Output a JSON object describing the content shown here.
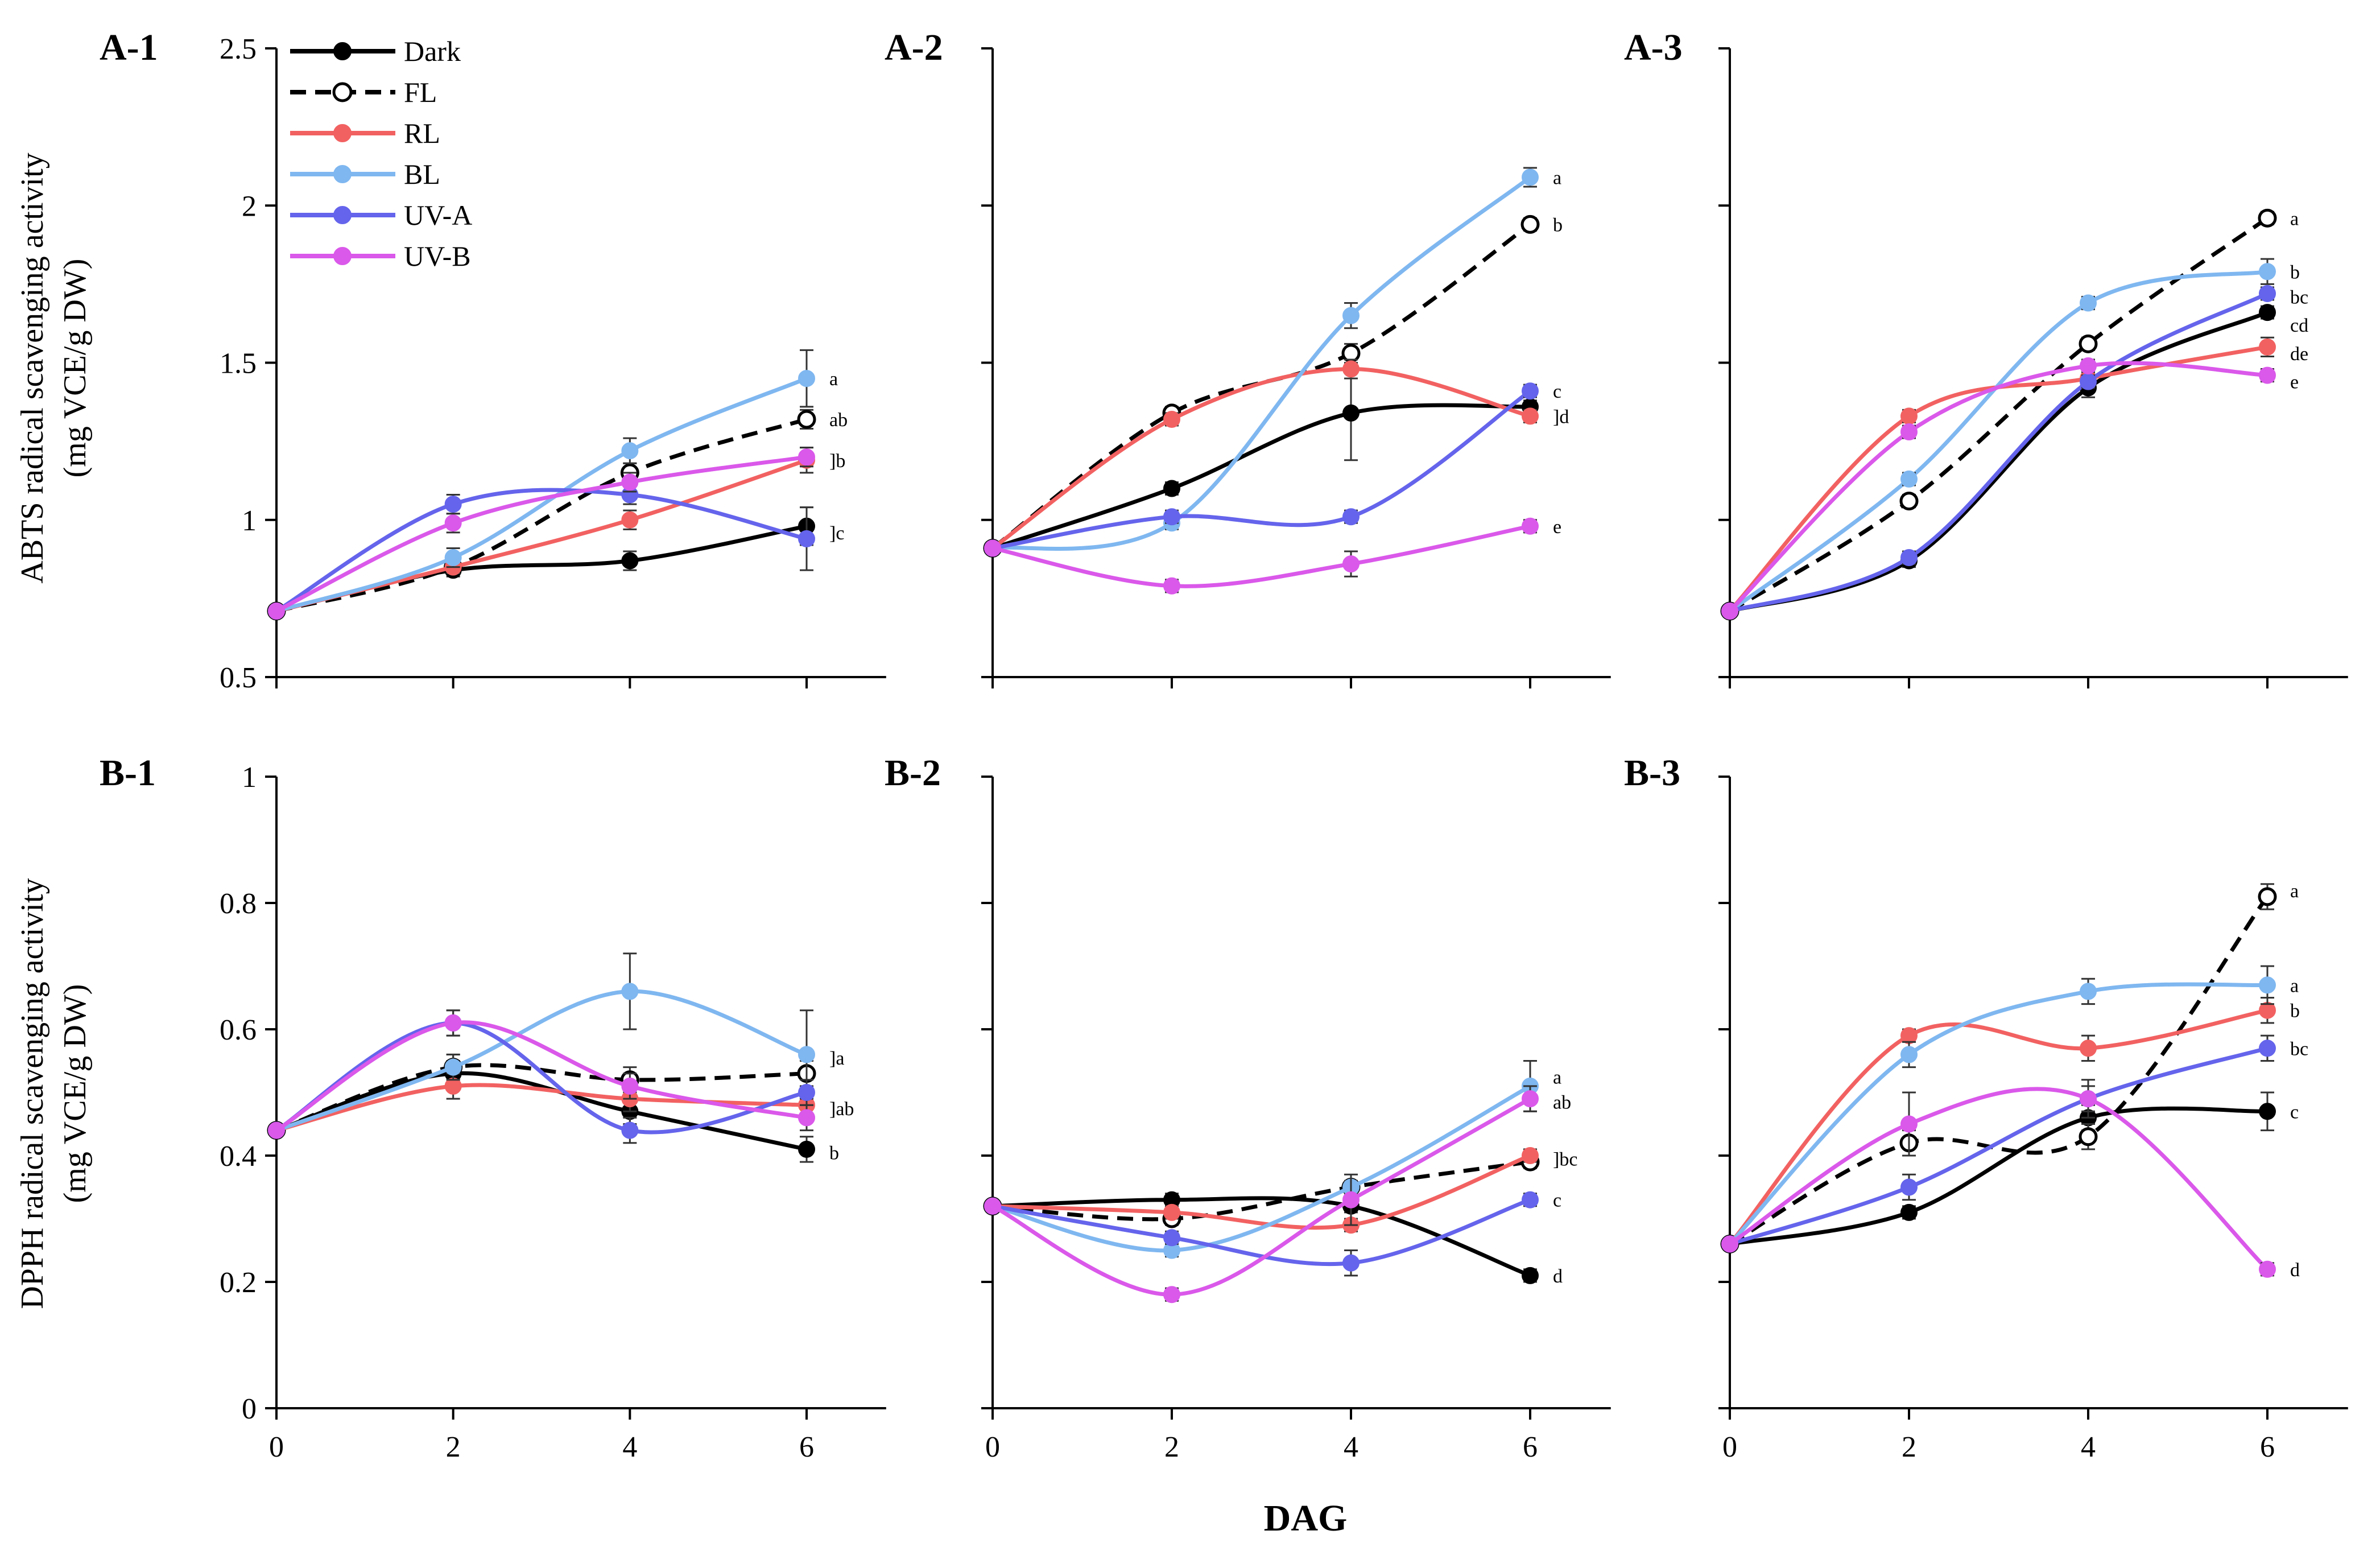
{
  "figure": {
    "xlabel": "DAG",
    "ylabel_top": [
      "ABTS radical scavenging activity",
      "(mg VCE/g DW)"
    ],
    "ylabel_bottom": [
      "DPPH radical scavenging activity",
      "(mg VCE/g DW)"
    ]
  },
  "legend": [
    {
      "name": "Dark",
      "color": "#000000",
      "dash": false,
      "marker": "filled"
    },
    {
      "name": "FL",
      "color": "#000000",
      "dash": true,
      "marker": "open"
    },
    {
      "name": "RL",
      "color": "#f26161",
      "dash": false,
      "marker": "filled"
    },
    {
      "name": "BL",
      "color": "#7fb7f0",
      "dash": false,
      "marker": "filled"
    },
    {
      "name": "UV-A",
      "color": "#6464ec",
      "dash": false,
      "marker": "filled"
    },
    {
      "name": "UV-B",
      "color": "#da58ea",
      "dash": false,
      "marker": "filled"
    }
  ],
  "chart_data": [
    {
      "id": "A-1",
      "type": "line",
      "title": "A-1",
      "x": [
        0,
        2,
        4,
        6
      ],
      "xticks": [
        "0",
        "2",
        "4",
        "6"
      ],
      "xlim": [
        0,
        6.9
      ],
      "ylim": [
        0.5,
        2.5
      ],
      "yticks": [
        "0.5",
        "1",
        "1.5",
        "2",
        "2.5"
      ],
      "series": [
        {
          "name": "Dark",
          "values": [
            0.71,
            0.84,
            0.87,
            0.98
          ],
          "err": [
            0,
            0.02,
            0.03,
            0.06
          ]
        },
        {
          "name": "FL",
          "values": [
            0.71,
            0.85,
            1.15,
            1.32
          ],
          "err": [
            0,
            0.02,
            0.03,
            0.03
          ]
        },
        {
          "name": "RL",
          "values": [
            0.71,
            0.85,
            1.0,
            1.19
          ],
          "err": [
            0,
            0.02,
            0.03,
            0.04
          ]
        },
        {
          "name": "BL",
          "values": [
            0.71,
            0.88,
            1.22,
            1.45
          ],
          "err": [
            0,
            0.03,
            0.04,
            0.09
          ]
        },
        {
          "name": "UV-A",
          "values": [
            0.71,
            1.05,
            1.08,
            0.94
          ],
          "err": [
            0,
            0.03,
            0.03,
            0.1
          ]
        },
        {
          "name": "UV-B",
          "values": [
            0.71,
            0.99,
            1.12,
            1.2
          ],
          "err": [
            0,
            0.03,
            0.03,
            0.03
          ]
        }
      ],
      "annotations": [
        {
          "text": "a",
          "y": 1.45
        },
        {
          "text": "ab",
          "y": 1.32
        },
        {
          "text": "]b",
          "y": 1.19
        },
        {
          "text": "]c",
          "y": 0.96
        }
      ]
    },
    {
      "id": "A-2",
      "type": "line",
      "title": "A-2",
      "x": [
        0,
        2,
        4,
        6
      ],
      "xticks": [
        "0",
        "2",
        "4",
        "6"
      ],
      "xlim": [
        0,
        6.9
      ],
      "ylim": [
        0.5,
        2.5
      ],
      "yticks": [
        "0.5",
        "1",
        "1.5",
        "2",
        "2.5"
      ],
      "series": [
        {
          "name": "Dark",
          "values": [
            0.91,
            1.1,
            1.34,
            1.36
          ],
          "err": [
            0,
            0.02,
            0.15,
            0.02
          ]
        },
        {
          "name": "FL",
          "values": [
            0.91,
            1.34,
            1.53,
            1.94
          ],
          "err": [
            0,
            0.02,
            0.03,
            0.02
          ]
        },
        {
          "name": "RL",
          "values": [
            0.91,
            1.32,
            1.48,
            1.33
          ],
          "err": [
            0,
            0.02,
            0.03,
            0.02
          ]
        },
        {
          "name": "BL",
          "values": [
            0.91,
            0.99,
            1.65,
            2.09
          ],
          "err": [
            0,
            0.02,
            0.04,
            0.03
          ]
        },
        {
          "name": "UV-A",
          "values": [
            0.91,
            1.01,
            1.01,
            1.41
          ],
          "err": [
            0,
            0.02,
            0.02,
            0.02
          ]
        },
        {
          "name": "UV-B",
          "values": [
            0.91,
            0.79,
            0.86,
            0.98
          ],
          "err": [
            0,
            0.02,
            0.04,
            0.02
          ]
        }
      ],
      "annotations": [
        {
          "text": "a",
          "y": 2.09
        },
        {
          "text": "b",
          "y": 1.94
        },
        {
          "text": "c",
          "y": 1.41
        },
        {
          "text": "]d",
          "y": 1.33
        },
        {
          "text": "e",
          "y": 0.98
        }
      ]
    },
    {
      "id": "A-3",
      "type": "line",
      "title": "A-3",
      "x": [
        0,
        2,
        4,
        6
      ],
      "xticks": [
        "0",
        "2",
        "4",
        "6"
      ],
      "xlim": [
        0,
        6.9
      ],
      "ylim": [
        0.5,
        2.5
      ],
      "yticks": [
        "0.5",
        "1",
        "1.5",
        "2",
        "2.5"
      ],
      "series": [
        {
          "name": "Dark",
          "values": [
            0.71,
            0.87,
            1.42,
            1.66
          ],
          "err": [
            0,
            0.02,
            0.03,
            0.02
          ]
        },
        {
          "name": "FL",
          "values": [
            0.71,
            1.06,
            1.56,
            1.96
          ],
          "err": [
            0,
            0.02,
            0.02,
            0.02
          ]
        },
        {
          "name": "RL",
          "values": [
            0.71,
            1.33,
            1.45,
            1.55
          ],
          "err": [
            0,
            0.02,
            0.02,
            0.03
          ]
        },
        {
          "name": "BL",
          "values": [
            0.71,
            1.13,
            1.69,
            1.79
          ],
          "err": [
            0,
            0.02,
            0.02,
            0.04
          ]
        },
        {
          "name": "UV-A",
          "values": [
            0.71,
            0.88,
            1.44,
            1.72
          ],
          "err": [
            0,
            0.02,
            0.02,
            0.02
          ]
        },
        {
          "name": "UV-B",
          "values": [
            0.71,
            1.28,
            1.49,
            1.46
          ],
          "err": [
            0,
            0.02,
            0.02,
            0.02
          ]
        }
      ],
      "annotations": [
        {
          "text": "a",
          "y": 1.96
        },
        {
          "text": "b",
          "y": 1.79
        },
        {
          "text": "bc",
          "y": 1.71
        },
        {
          "text": "cd",
          "y": 1.62
        },
        {
          "text": "de",
          "y": 1.53
        },
        {
          "text": "e",
          "y": 1.44
        }
      ]
    },
    {
      "id": "B-1",
      "type": "line",
      "title": "B-1",
      "x": [
        0,
        2,
        4,
        6
      ],
      "xticks": [
        "0",
        "2",
        "4",
        "6"
      ],
      "xlim": [
        0,
        6.9
      ],
      "ylim": [
        0,
        1
      ],
      "yticks": [
        "0",
        "0.2",
        "0.4",
        "0.6",
        "0.8",
        "1"
      ],
      "series": [
        {
          "name": "Dark",
          "values": [
            0.44,
            0.53,
            0.47,
            0.41
          ],
          "err": [
            0,
            0.02,
            0.02,
            0.02
          ]
        },
        {
          "name": "FL",
          "values": [
            0.44,
            0.54,
            0.52,
            0.53
          ],
          "err": [
            0,
            0.02,
            0.02,
            0.02
          ]
        },
        {
          "name": "RL",
          "values": [
            0.44,
            0.51,
            0.49,
            0.48
          ],
          "err": [
            0,
            0.02,
            0.02,
            0.02
          ]
        },
        {
          "name": "BL",
          "values": [
            0.44,
            0.54,
            0.66,
            0.56
          ],
          "err": [
            0,
            0.02,
            0.06,
            0.07
          ]
        },
        {
          "name": "UV-A",
          "values": [
            0.44,
            0.61,
            0.44,
            0.5
          ],
          "err": [
            0,
            0.02,
            0.02,
            0.02
          ]
        },
        {
          "name": "UV-B",
          "values": [
            0.44,
            0.61,
            0.51,
            0.46
          ],
          "err": [
            0,
            0.02,
            0.02,
            0.02
          ]
        }
      ],
      "annotations": [
        {
          "text": "]a",
          "y": 0.555
        },
        {
          "text": "]ab",
          "y": 0.475
        },
        {
          "text": "b",
          "y": 0.405
        }
      ]
    },
    {
      "id": "B-2",
      "type": "line",
      "title": "B-2",
      "x": [
        0,
        2,
        4,
        6
      ],
      "xticks": [
        "0",
        "2",
        "4",
        "6"
      ],
      "xlim": [
        0,
        6.9
      ],
      "ylim": [
        0,
        1
      ],
      "yticks": [
        "0",
        "0.2",
        "0.4",
        "0.6",
        "0.8",
        "1"
      ],
      "series": [
        {
          "name": "Dark",
          "values": [
            0.32,
            0.33,
            0.32,
            0.21
          ],
          "err": [
            0,
            0.01,
            0.01,
            0.01
          ]
        },
        {
          "name": "FL",
          "values": [
            0.32,
            0.3,
            0.35,
            0.39
          ],
          "err": [
            0,
            0.01,
            0.01,
            0.01
          ]
        },
        {
          "name": "RL",
          "values": [
            0.32,
            0.31,
            0.29,
            0.4
          ],
          "err": [
            0,
            0.01,
            0.01,
            0.01
          ]
        },
        {
          "name": "BL",
          "values": [
            0.32,
            0.25,
            0.35,
            0.51
          ],
          "err": [
            0,
            0.01,
            0.01,
            0.04
          ]
        },
        {
          "name": "UV-A",
          "values": [
            0.32,
            0.27,
            0.23,
            0.33
          ],
          "err": [
            0,
            0.01,
            0.02,
            0.01
          ]
        },
        {
          "name": "UV-B",
          "values": [
            0.32,
            0.18,
            0.33,
            0.49
          ],
          "err": [
            0,
            0.01,
            0.04,
            0.02
          ]
        }
      ],
      "annotations": [
        {
          "text": "a",
          "y": 0.525
        },
        {
          "text": "ab",
          "y": 0.485
        },
        {
          "text": "]bc",
          "y": 0.395
        },
        {
          "text": "c",
          "y": 0.33
        },
        {
          "text": "d",
          "y": 0.21
        }
      ]
    },
    {
      "id": "B-3",
      "type": "line",
      "title": "B-3",
      "x": [
        0,
        2,
        4,
        6
      ],
      "xticks": [
        "0",
        "2",
        "4",
        "6"
      ],
      "xlim": [
        0,
        6.9
      ],
      "ylim": [
        0,
        1
      ],
      "yticks": [
        "0",
        "0.2",
        "0.4",
        "0.6",
        "0.8",
        "1"
      ],
      "series": [
        {
          "name": "Dark",
          "values": [
            0.26,
            0.31,
            0.46,
            0.47
          ],
          "err": [
            0,
            0.01,
            0.02,
            0.03
          ]
        },
        {
          "name": "FL",
          "values": [
            0.26,
            0.42,
            0.43,
            0.81
          ],
          "err": [
            0,
            0.02,
            0.02,
            0.02
          ]
        },
        {
          "name": "RL",
          "values": [
            0.26,
            0.59,
            0.57,
            0.63
          ],
          "err": [
            0,
            0.01,
            0.02,
            0.02
          ]
        },
        {
          "name": "BL",
          "values": [
            0.26,
            0.56,
            0.66,
            0.67
          ],
          "err": [
            0,
            0.02,
            0.02,
            0.03
          ]
        },
        {
          "name": "UV-A",
          "values": [
            0.26,
            0.35,
            0.49,
            0.57
          ],
          "err": [
            0,
            0.02,
            0.02,
            0.02
          ]
        },
        {
          "name": "UV-B",
          "values": [
            0.26,
            0.45,
            0.49,
            0.22
          ],
          "err": [
            0,
            0.05,
            0.03,
            0.01
          ]
        }
      ],
      "annotations": [
        {
          "text": "a",
          "y": 0.82
        },
        {
          "text": "a",
          "y": 0.67
        },
        {
          "text": "b",
          "y": 0.63
        },
        {
          "text": "bc",
          "y": 0.57
        },
        {
          "text": "c",
          "y": 0.47
        },
        {
          "text": "d",
          "y": 0.22
        }
      ]
    }
  ]
}
